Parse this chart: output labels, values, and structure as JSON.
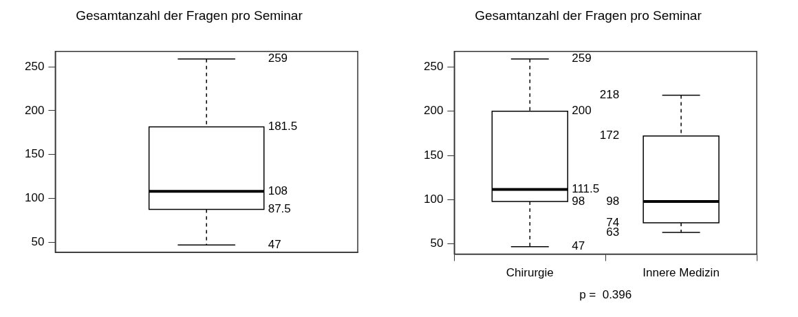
{
  "chart_data": [
    {
      "type": "box",
      "title": "Gesamtanzahl der Fragen pro Seminar",
      "categories": [
        null
      ],
      "boxes": [
        {
          "low": 47,
          "q1": 87.5,
          "median": 108,
          "q3": 181.5,
          "high": 259
        }
      ],
      "ylim": [
        38.5,
        267.5
      ],
      "yticks": [
        50,
        100,
        150,
        200,
        250
      ],
      "tick_labels": "y",
      "annotations": [
        "259",
        "181.5",
        "108",
        "87.5",
        "47"
      ]
    },
    {
      "type": "box",
      "title": "Gesamtanzahl der Fragen pro Seminar",
      "categories": [
        "Chirurgie",
        "Innere Medizin"
      ],
      "boxes": [
        {
          "low": 47,
          "q1": 98,
          "median": 111.5,
          "q3": 200,
          "high": 259
        },
        {
          "low": 63,
          "q1": 74,
          "median": 98,
          "q3": 172,
          "high": 218
        }
      ],
      "ylim": [
        38.5,
        267.5
      ],
      "yticks": [
        50,
        100,
        150,
        200,
        250
      ],
      "annotations": [
        "259",
        "200",
        "111.5",
        "98",
        "47",
        "218",
        "172",
        "98",
        "74",
        "63",
        "p =  0.396"
      ]
    }
  ]
}
